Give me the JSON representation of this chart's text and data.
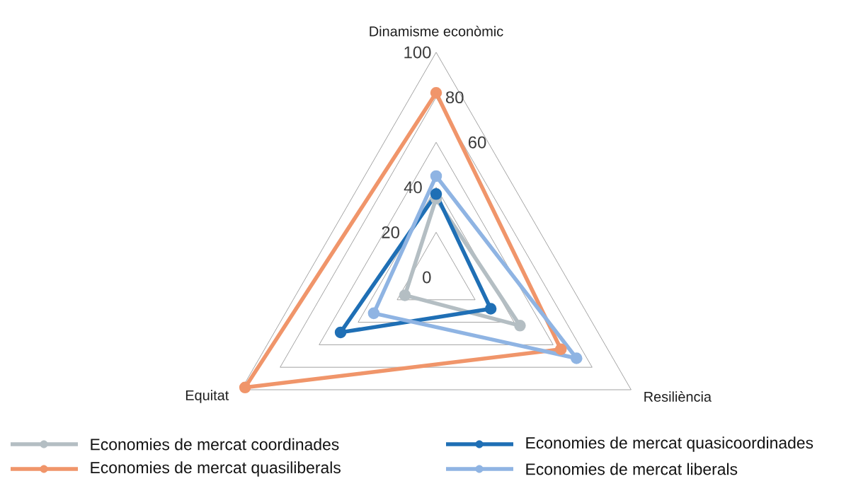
{
  "chart_data": {
    "type": "radar",
    "categories": [
      "Dinamisme econòmic",
      "Resiliència",
      "Equitat"
    ],
    "series": [
      {
        "name": "Economies de mercat coordinades",
        "color": "#b4bec3",
        "values": [
          35,
          43,
          16
        ]
      },
      {
        "name": "Economies de mercat quasicoordinades",
        "color": "#1f6fb5",
        "values": [
          37,
          28,
          49
        ]
      },
      {
        "name": "Economies de mercat quasiliberals",
        "color": "#f0956a",
        "values": [
          82,
          64,
          98
        ]
      },
      {
        "name": "Economies de mercat liberals",
        "color": "#8fb4e3",
        "values": [
          45,
          72,
          32
        ]
      }
    ],
    "ylim": [
      0,
      100
    ],
    "yticks": [
      0,
      20,
      40,
      60,
      80,
      100
    ],
    "grid": true,
    "legend": "bottom",
    "marker": "circle"
  }
}
